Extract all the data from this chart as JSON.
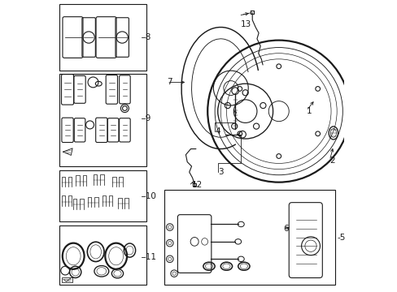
{
  "bg_color": "#ffffff",
  "lc": "#1a1a1a",
  "lw": 0.8,
  "figsize": [
    4.89,
    3.6
  ],
  "dpi": 100,
  "boxes": {
    "b8": [
      0.02,
      0.76,
      0.3,
      0.23
    ],
    "b9": [
      0.02,
      0.43,
      0.3,
      0.32
    ],
    "b10": [
      0.02,
      0.24,
      0.3,
      0.175
    ],
    "b11": [
      0.02,
      0.02,
      0.3,
      0.205
    ],
    "b5": [
      0.38,
      0.02,
      0.59,
      0.33
    ]
  },
  "labels": {
    "8": [
      0.308,
      0.875,
      "-8"
    ],
    "9": [
      0.308,
      0.595,
      "-9"
    ],
    "10": [
      0.308,
      0.327,
      "-10"
    ],
    "11": [
      0.308,
      0.117,
      "-11"
    ],
    "1": [
      0.87,
      0.62,
      "1"
    ],
    "2": [
      0.95,
      0.45,
      "2"
    ],
    "3": [
      0.565,
      0.41,
      "3"
    ],
    "4": [
      0.555,
      0.55,
      "4"
    ],
    "5": [
      0.976,
      0.185,
      "-5"
    ],
    "6": [
      0.79,
      0.215,
      "6"
    ],
    "7": [
      0.39,
      0.72,
      "7"
    ],
    "12": [
      0.475,
      0.365,
      "12"
    ],
    "13": [
      0.645,
      0.92,
      "13"
    ]
  }
}
